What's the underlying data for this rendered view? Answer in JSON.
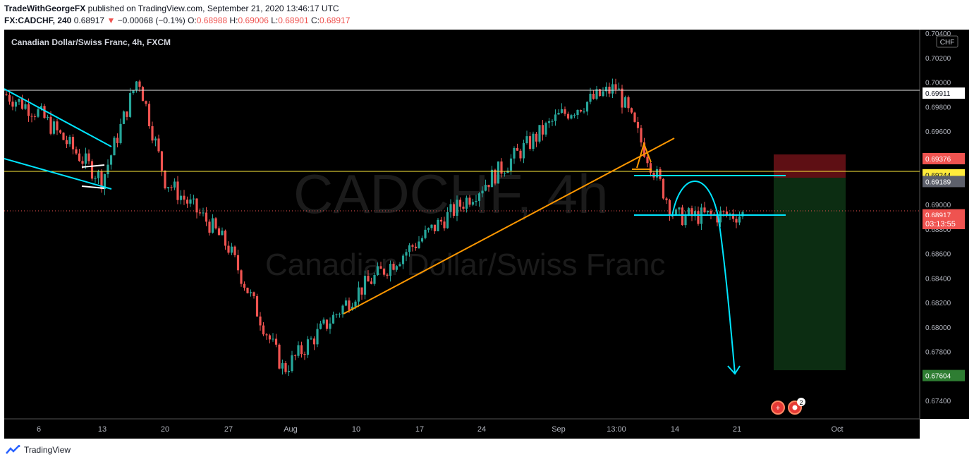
{
  "header": {
    "publisher": "TradeWithGeorgeFX",
    "published_text": "published on TradingView.com, September 21, 2020 13:46:17 UTC",
    "symbol": "FX:CADCHF, 240",
    "last": "0.68917",
    "change": "−0.00068 (−0.1%)",
    "o_label": "O:",
    "o_value": "0.68988",
    "h_label": "H:",
    "h_value": "0.69006",
    "l_label": "L:",
    "l_value": "0.68901",
    "c_label": "C:",
    "c_value": "0.68917"
  },
  "chart": {
    "legend_title": "Canadian Dollar/Swiss Franc, 4h, FXCM",
    "watermark_symbol": "CADCHF, 4h",
    "watermark_name": "Canadian Dollar/Swiss Franc",
    "currency_badge": "CHF",
    "countdown": "03:13:55",
    "events_count": "2",
    "colors": {
      "background": "#000000",
      "up": "#26a69a",
      "down": "#ef5350",
      "trend_orange": "#ff9800",
      "line_cyan": "#00e5ff",
      "level_yellow": "#ffeb3b",
      "stop_zone": "#5e0f14",
      "target_zone": "#0c2d12"
    }
  },
  "chart_data": {
    "type": "candlestick",
    "title": "Canadian Dollar/Swiss Franc, 4h, FXCM",
    "ylim": [
      0.6725,
      0.7043
    ],
    "y_ticks": [
      "0.70400",
      "0.70200",
      "0.70000",
      "0.69800",
      "0.69600",
      "0.69400",
      "0.69200",
      "0.69000",
      "0.68800",
      "0.68600",
      "0.68400",
      "0.68200",
      "0.68000",
      "0.67800",
      "0.67600",
      "0.67400"
    ],
    "x_ticks": [
      "6",
      "13",
      "20",
      "27",
      "Aug",
      "10",
      "17",
      "24",
      "Sep",
      "13:00",
      "14",
      "21",
      "Oct"
    ],
    "price_path": [
      [
        "6",
        0.6975
      ],
      [
        "13",
        0.692
      ],
      [
        "17",
        0.7005
      ],
      [
        "20",
        0.692
      ],
      [
        "24",
        0.6885
      ],
      [
        "27",
        0.6865
      ],
      [
        "Aug",
        0.6765
      ],
      [
        "10",
        0.6828
      ],
      [
        "17",
        0.6871
      ],
      [
        "24",
        0.6915
      ],
      [
        "Sep",
        0.6972
      ],
      [
        "13:00",
        0.6996
      ],
      [
        "14",
        0.689
      ],
      [
        "21",
        0.6892
      ]
    ],
    "price_labels": [
      {
        "value": 0.69911,
        "text": "0.69911",
        "role": "horizontal-level"
      },
      {
        "value": 0.69376,
        "text": "0.69376",
        "role": "stop-loss"
      },
      {
        "value": 0.69244,
        "text": "0.69244",
        "role": "horizontal-level"
      },
      {
        "value": 0.69189,
        "text": "0.69189",
        "role": "entry"
      },
      {
        "value": 0.68917,
        "text": "0.68917",
        "role": "last-price"
      },
      {
        "value": 0.67604,
        "text": "0.67604",
        "role": "take-profit"
      }
    ],
    "drawings": [
      {
        "type": "wedge",
        "desc": "descending wedge, early July"
      },
      {
        "type": "trendline",
        "desc": "rising support from Aug 10 to Sep 13 (broken)"
      },
      {
        "type": "range",
        "top": 0.692,
        "bottom": 0.689
      },
      {
        "type": "projection-arrow",
        "desc": "downward arc toward 0.676"
      }
    ],
    "legend": "none",
    "grid": false
  },
  "footer": {
    "brand": "TradingView"
  }
}
